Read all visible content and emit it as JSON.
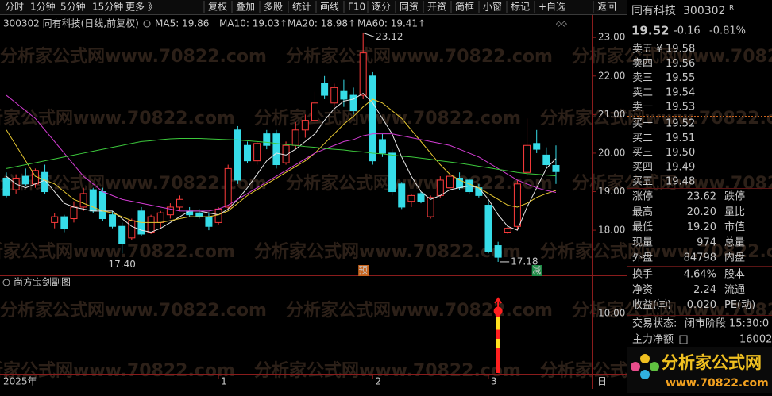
{
  "toolbar": {
    "left": [
      "分时",
      "1分钟",
      "5分钟",
      "15分钟",
      "更多 》"
    ],
    "right": [
      "复权",
      "叠加",
      "多股",
      "统计",
      "画线",
      "F10",
      "逐分",
      "同资",
      "开资",
      "简框",
      "小窗",
      "标记",
      "+自选",
      "返回"
    ]
  },
  "watermark": "分析家公式网www.70822.com",
  "chart_data": [
    {
      "type": "candlestick",
      "title": "300302 同有科技(日线,前复权)",
      "period_label": "日",
      "categories": [
        "2025年",
        null,
        null,
        null,
        null,
        null,
        null,
        null,
        null,
        null,
        null,
        null,
        null,
        null,
        null,
        null,
        null,
        null,
        null,
        null,
        null,
        null,
        "1",
        null,
        null,
        null,
        null,
        null,
        null,
        null,
        null,
        null,
        null,
        null,
        null,
        null,
        null,
        null,
        "2",
        null,
        null,
        null,
        null,
        null,
        null,
        null,
        null,
        null,
        null,
        null,
        "3",
        null,
        null,
        null,
        null,
        null,
        null,
        null
      ],
      "open": [
        19.35,
        19.05,
        19.4,
        19.2,
        19.5,
        18.2,
        18.35,
        18.3,
        18.6,
        19.05,
        19.0,
        18.4,
        18.1,
        17.8,
        18.5,
        17.95,
        18.2,
        18.4,
        18.6,
        18.5,
        18.45,
        18.35,
        18.2,
        18.6,
        20.6,
        20.2,
        19.8,
        20.5,
        20.5,
        19.75,
        20.2,
        20.6,
        20.85,
        21.8,
        21.3,
        21.6,
        21.5,
        21.5,
        22.0,
        20.35,
        20.0,
        19.2,
        18.75,
        18.95,
        18.35,
        18.9,
        19.1,
        19.35,
        19.3,
        19.1,
        18.65,
        17.6,
        17.95,
        18.1,
        19.5,
        20.25,
        19.95,
        19.68
      ],
      "high": [
        19.5,
        19.45,
        19.6,
        19.6,
        19.7,
        18.45,
        18.4,
        18.75,
        19.1,
        19.1,
        19.1,
        18.5,
        18.2,
        18.3,
        18.6,
        18.4,
        18.5,
        18.7,
        18.9,
        18.6,
        18.55,
        18.45,
        18.6,
        19.7,
        20.7,
        20.3,
        20.3,
        20.6,
        20.6,
        20.3,
        20.8,
        21.0,
        21.6,
        22.0,
        21.8,
        21.9,
        21.7,
        23.12,
        22.1,
        20.5,
        20.1,
        19.25,
        18.95,
        19.0,
        18.9,
        19.4,
        19.6,
        19.5,
        19.35,
        19.2,
        18.75,
        17.7,
        18.1,
        19.3,
        20.9,
        20.6,
        20.15,
        20.2
      ],
      "low": [
        18.85,
        18.95,
        19.15,
        19.1,
        18.95,
        18.05,
        17.95,
        18.2,
        18.5,
        18.45,
        18.25,
        18.05,
        17.4,
        17.75,
        17.85,
        17.9,
        18.05,
        18.3,
        18.5,
        18.35,
        18.3,
        18.0,
        18.15,
        18.55,
        19.2,
        19.75,
        19.7,
        20.1,
        19.6,
        19.7,
        20.1,
        20.4,
        20.7,
        21.4,
        21.2,
        21.2,
        21.0,
        21.4,
        19.7,
        19.9,
        18.9,
        18.55,
        18.6,
        18.7,
        18.3,
        18.85,
        19.0,
        19.05,
        18.95,
        18.85,
        17.4,
        17.18,
        17.9,
        18.0,
        19.4,
        20.0,
        19.6,
        19.2
      ],
      "close": [
        18.9,
        19.35,
        19.2,
        19.55,
        19.0,
        18.35,
        18.05,
        18.6,
        18.95,
        18.5,
        18.3,
        18.1,
        17.65,
        18.25,
        17.9,
        18.35,
        18.45,
        18.6,
        18.8,
        18.4,
        18.35,
        18.1,
        18.55,
        19.6,
        19.3,
        19.8,
        20.25,
        20.2,
        19.7,
        20.2,
        20.6,
        20.85,
        21.3,
        21.5,
        21.7,
        21.4,
        21.1,
        22.6,
        19.8,
        20.0,
        19.0,
        18.6,
        18.9,
        18.75,
        18.85,
        19.3,
        19.4,
        19.1,
        19.0,
        18.9,
        17.45,
        17.3,
        18.05,
        19.2,
        20.2,
        20.1,
        19.7,
        19.52
      ],
      "up_color": "#ff3c3c",
      "down_color": "#36dce8",
      "series": [
        {
          "name": "MA5: 19.86",
          "color": "#e8e8e8",
          "values": [
            19.4,
            19.2,
            19.1,
            19.2,
            19.3,
            19.0,
            18.7,
            18.6,
            18.55,
            18.5,
            18.5,
            18.5,
            18.3,
            18.1,
            18.0,
            17.95,
            18.05,
            18.2,
            18.35,
            18.5,
            18.5,
            18.45,
            18.4,
            18.55,
            18.8,
            19.1,
            19.45,
            19.8,
            20.0,
            19.95,
            20.1,
            20.3,
            20.5,
            20.85,
            21.15,
            21.35,
            21.4,
            21.55,
            21.3,
            20.9,
            20.5,
            19.9,
            19.4,
            19.0,
            18.8,
            18.9,
            19.05,
            19.1,
            19.15,
            19.1,
            18.8,
            18.4,
            18.1,
            18.0,
            18.6,
            19.1,
            19.6,
            19.86
          ]
        },
        {
          "name": "MA10: 19.03↑",
          "color": "#e8c832",
          "values": [
            20.6,
            20.2,
            19.8,
            19.4,
            19.3,
            19.2,
            19.0,
            18.8,
            18.7,
            18.6,
            18.5,
            18.45,
            18.35,
            18.25,
            18.2,
            18.2,
            18.2,
            18.25,
            18.3,
            18.35,
            18.35,
            18.35,
            18.4,
            18.5,
            18.7,
            18.9,
            19.05,
            19.2,
            19.35,
            19.5,
            19.65,
            19.8,
            20.0,
            20.25,
            20.5,
            20.75,
            20.95,
            21.2,
            21.4,
            21.3,
            21.1,
            20.9,
            20.6,
            20.3,
            20.0,
            19.7,
            19.45,
            19.3,
            19.2,
            19.1,
            18.95,
            18.8,
            18.65,
            18.6,
            18.7,
            18.85,
            18.95,
            19.03
          ]
        },
        {
          "name": "MA20: 18.98↑",
          "color": "#d23cd2",
          "values": [
            21.5,
            21.3,
            21.1,
            20.9,
            20.6,
            20.3,
            20.0,
            19.7,
            19.4,
            19.2,
            19.0,
            18.9,
            18.8,
            18.75,
            18.7,
            18.65,
            18.6,
            18.55,
            18.5,
            18.5,
            18.5,
            18.5,
            18.55,
            18.65,
            18.8,
            18.95,
            19.1,
            19.25,
            19.4,
            19.55,
            19.7,
            19.85,
            20.0,
            20.1,
            20.2,
            20.3,
            20.35,
            20.45,
            20.5,
            20.5,
            20.5,
            20.45,
            20.4,
            20.35,
            20.3,
            20.25,
            20.2,
            20.1,
            20.0,
            19.9,
            19.75,
            19.6,
            19.45,
            19.3,
            19.2,
            19.1,
            19.03,
            18.98
          ]
        },
        {
          "name": "MA60: 19.41↑",
          "color": "#3cc83c",
          "values": [
            19.6,
            19.65,
            19.7,
            19.75,
            19.8,
            19.85,
            19.9,
            19.95,
            20.0,
            20.05,
            20.1,
            20.15,
            20.2,
            20.25,
            20.3,
            20.32,
            20.35,
            20.37,
            20.38,
            20.38,
            20.38,
            20.37,
            20.36,
            20.35,
            20.34,
            20.32,
            20.3,
            20.28,
            20.25,
            20.22,
            20.2,
            20.17,
            20.15,
            20.12,
            20.1,
            20.08,
            20.05,
            20.03,
            20.0,
            19.98,
            19.95,
            19.92,
            19.9,
            19.87,
            19.84,
            19.8,
            19.77,
            19.74,
            19.7,
            19.66,
            19.62,
            19.58,
            19.54,
            19.5,
            19.47,
            19.45,
            19.43,
            19.41
          ]
        }
      ],
      "annotations": [
        {
          "value": 23.12,
          "label": "23.12"
        },
        {
          "value": 17.4,
          "label": "17.40"
        },
        {
          "value": 17.18,
          "label": "17.18"
        }
      ],
      "signals": [
        null,
        null,
        null,
        null,
        null,
        null,
        null,
        null,
        null,
        null,
        null,
        null,
        null,
        null,
        null,
        null,
        null,
        null,
        null,
        null,
        null,
        null,
        null,
        null,
        null,
        null,
        null,
        null,
        null,
        null,
        null,
        null,
        null,
        null,
        null,
        null,
        null,
        {
          "label": "预",
          "color": "#c8641e"
        },
        null,
        null,
        null,
        null,
        null,
        null,
        null,
        null,
        null,
        null,
        null,
        null,
        null,
        null,
        null,
        null,
        null,
        {
          "label": "减",
          "color": "#1e8c46"
        },
        null,
        null
      ],
      "ylim": [
        16.87,
        23.56
      ],
      "yticks": [
        {
          "value": 18,
          "label": "18.00"
        },
        {
          "value": 19,
          "label": "19.00"
        },
        {
          "value": 20,
          "label": "20.00"
        },
        {
          "value": 21,
          "label": "21.00"
        },
        {
          "value": 22,
          "label": "22.00"
        },
        {
          "value": 23,
          "label": "23.00"
        }
      ]
    },
    {
      "type": "bar",
      "title": "尚方宝剑副图",
      "values": [
        null,
        null,
        null,
        null,
        null,
        null,
        null,
        null,
        null,
        null,
        null,
        null,
        null,
        null,
        null,
        null,
        null,
        null,
        null,
        null,
        null,
        null,
        null,
        null,
        null,
        null,
        null,
        null,
        null,
        null,
        null,
        null,
        null,
        null,
        null,
        null,
        null,
        null,
        null,
        null,
        null,
        null,
        null,
        null,
        null,
        null,
        null,
        null,
        null,
        null,
        null,
        10.4,
        null,
        null,
        null,
        null,
        null,
        null
      ],
      "ylim": [
        0,
        16
      ],
      "yticks": [
        {
          "value": 10,
          "label": "10.00"
        }
      ]
    }
  ],
  "quote": {
    "name": "同有科技",
    "code": "300302",
    "flag": "R",
    "price": "19.52",
    "change": "-0.16",
    "change_pct": "-0.81%"
  },
  "asks": [
    [
      "卖五 ¥",
      "19.58"
    ],
    [
      "卖四",
      "19.56"
    ],
    [
      "卖三",
      "19.55"
    ],
    [
      "卖二",
      "19.54"
    ],
    [
      "卖一",
      "19.53"
    ]
  ],
  "bids": [
    [
      "买一",
      "19.52"
    ],
    [
      "买二",
      "19.51"
    ],
    [
      "买三",
      "19.50"
    ],
    [
      "买四",
      "19.49"
    ],
    [
      "买五",
      "19.48"
    ]
  ],
  "stats": [
    {
      "label": "涨停",
      "value": "23.62",
      "label2": "跌停",
      "color": "#ff3c3c"
    },
    {
      "label": "最高",
      "value": "20.20",
      "label2": "量比",
      "color": "#ff3c3c"
    },
    {
      "label": "最低",
      "value": "19.20",
      "label2": "市值",
      "color": "#36dce8"
    },
    {
      "label": "现量",
      "value": "974",
      "label2": "总量",
      "color": "#e040e0"
    },
    {
      "label": "外盘",
      "value": "84798",
      "label2": "内盘",
      "color": "#ff3c3c"
    }
  ],
  "stats2": [
    {
      "label": "换手",
      "value": "4.64%",
      "label2": "股本",
      "color": "#e0e0e0"
    },
    {
      "label": "净资",
      "value": "2.24",
      "label2": "流通",
      "color": "#e0e0e0"
    },
    {
      "label": "收益(㈢)",
      "value": "0.020",
      "label2": "PE(动)",
      "color": "#e0e0e0"
    }
  ],
  "status": {
    "label": "交易状态:",
    "value": "闭市阶段",
    "time": "15:30:0"
  },
  "main_flow": {
    "label": "主力净额",
    "value": "16002"
  },
  "logo": {
    "name": "分析家公式网",
    "url": "www.70822.com"
  }
}
